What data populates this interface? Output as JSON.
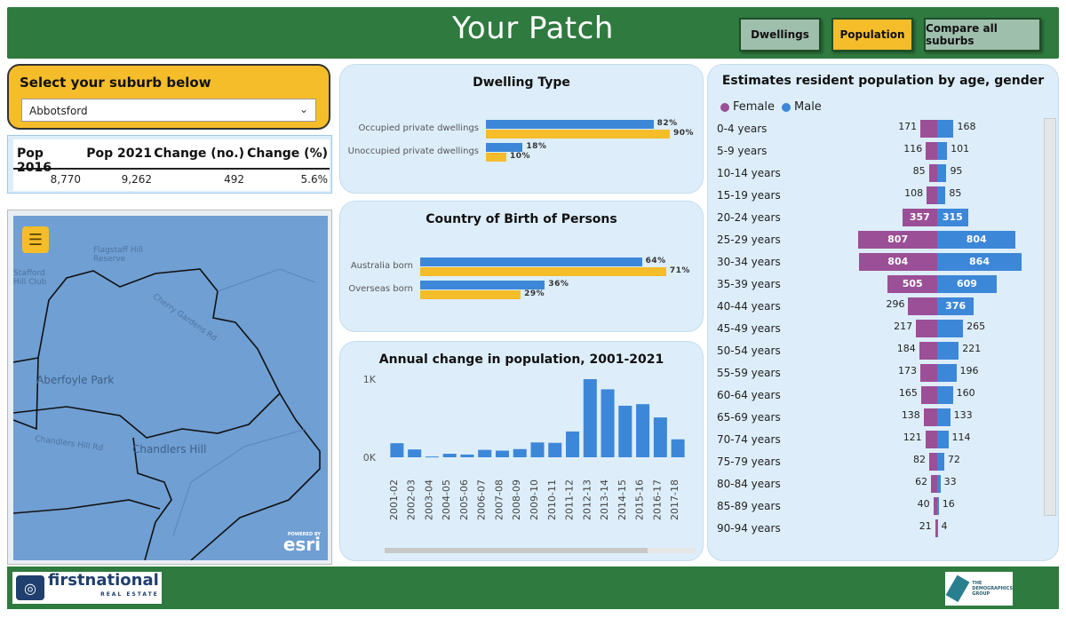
{
  "header": {
    "title": "Your Patch",
    "buttons": {
      "dwellings": "Dwellings",
      "population": "Population",
      "compare": "Compare all suburbs"
    }
  },
  "selector": {
    "title": "Select your suburb below",
    "value": "Abbotsford"
  },
  "pop_table": {
    "headers": [
      "Pop 2016",
      "Pop 2021",
      "Change (no.)",
      "Change (%)"
    ],
    "values": [
      "8,770",
      "9,262",
      "492",
      "5.6%"
    ]
  },
  "map": {
    "labels": [
      "Aberfoyle Park",
      "Chandlers Hill",
      "Flagstaff Hill Reserve",
      "Chandlers Hill Rd",
      "Cherry Gardens Rd",
      "Stafford Hill Club"
    ],
    "attribution": "esri",
    "attribution_small": "POWERED BY"
  },
  "chart_data": [
    {
      "type": "bar",
      "title": "Dwelling Type",
      "categories": [
        "Occupied private dwellings",
        "Unoccupied private dwellings"
      ],
      "series": [
        {
          "color": "#3d87d8",
          "values": [
            82,
            18
          ]
        },
        {
          "color": "#f5bd2a",
          "values": [
            90,
            10
          ]
        }
      ],
      "value_suffix": "%"
    },
    {
      "type": "bar",
      "title": "Country of Birth of Persons",
      "categories": [
        "Australia born",
        "Overseas born"
      ],
      "series": [
        {
          "color": "#3d87d8",
          "values": [
            64,
            36
          ]
        },
        {
          "color": "#f5bd2a",
          "values": [
            71,
            29
          ]
        }
      ],
      "value_suffix": "%"
    },
    {
      "type": "bar",
      "title": "Annual change in population, 2001-2021",
      "categories": [
        "2001-02",
        "2002-03",
        "2003-04",
        "2004-05",
        "2005-06",
        "2006-07",
        "2007-08",
        "2008-09",
        "2009-10",
        "2010-11",
        "2011-12",
        "2012-13",
        "2013-14",
        "2014-15",
        "2015-16",
        "2016-17",
        "2017-18"
      ],
      "values": [
        180,
        100,
        10,
        45,
        35,
        95,
        85,
        105,
        190,
        185,
        330,
        1000,
        870,
        660,
        680,
        510,
        230
      ],
      "yticks": [
        "0K",
        "1K"
      ],
      "ylim": [
        0,
        1000
      ],
      "color": "#3d87d8"
    },
    {
      "type": "bar",
      "title": "Estimates resident population by age, gender",
      "categories": [
        "0-4 years",
        "5-9 years",
        "10-14 years",
        "15-19 years",
        "20-24 years",
        "25-29 years",
        "30-34 years",
        "35-39 years",
        "40-44 years",
        "45-49 years",
        "50-54 years",
        "55-59 years",
        "60-64 years",
        "65-69 years",
        "70-74 years",
        "75-79 years",
        "80-84 years",
        "85-89 years",
        "90-94 years"
      ],
      "series": [
        {
          "name": "Female",
          "color": "#9b4f96",
          "values": [
            171,
            116,
            85,
            108,
            357,
            807,
            804,
            505,
            296,
            217,
            184,
            173,
            165,
            138,
            121,
            82,
            62,
            40,
            21
          ]
        },
        {
          "name": "Male",
          "color": "#3d87d8",
          "values": [
            168,
            101,
            95,
            85,
            315,
            804,
            864,
            609,
            376,
            265,
            221,
            196,
            160,
            133,
            114,
            72,
            33,
            16,
            4
          ]
        }
      ]
    }
  ],
  "footer": {
    "brand": "firstnational",
    "brand_sub": "REAL ESTATE",
    "partner_lines": [
      "THE",
      "DEMOGRAPHICS",
      "GROUP"
    ]
  }
}
